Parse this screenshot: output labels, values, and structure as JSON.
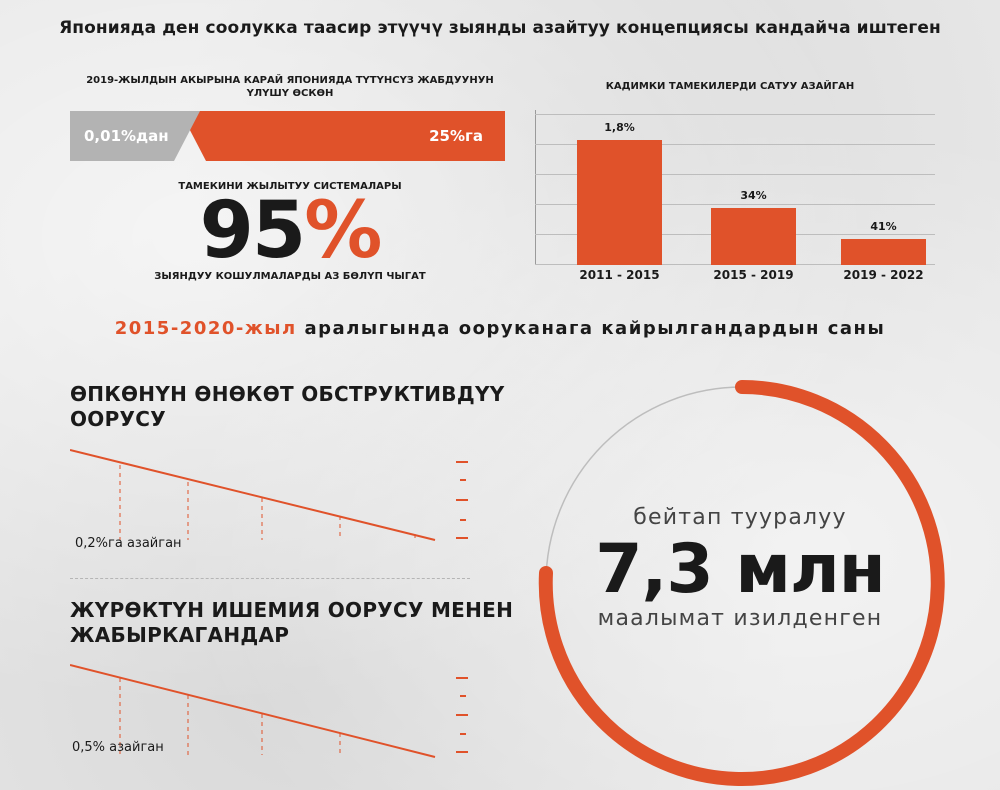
{
  "title": "Японияда ден соолукка таасир этүүчү зыянды азайтуу концепциясы кандайча иштеген",
  "share_block": {
    "caption": "2019-ЖЫЛДЫН АКЫРЫНА КАРАЙ ЯПОНИЯДА ТҮТҮНСҮЗ ЖАБДУУНУН ҮЛҮШҮ ӨСКӨН",
    "from_label": "0,01%дан",
    "to_label": "25%га"
  },
  "heating_block": {
    "caption_top": "ТАМЕКИНИ ЖЫЛЫТУУ СИСТЕМАЛАРЫ",
    "big_number": "95",
    "big_percent_sign": "%",
    "caption_bottom": "ЗЫЯНДУУ КОШУЛМАЛАРДЫ АЗ БӨЛҮП ЧЫГАТ"
  },
  "chart_data": {
    "type": "bar",
    "title": "КАДИМКИ ТАМЕКИЛЕРДИ САТУУ АЗАЙГАН",
    "categories": [
      "2011 - 2015",
      "2015 - 2019",
      "2019 - 2022"
    ],
    "values": [
      1.8,
      34,
      41
    ],
    "value_labels": [
      "1,8%",
      "34%",
      "41%"
    ],
    "bar_heights_relative": [
      1.0,
      0.46,
      0.21
    ],
    "color": "#e0522a",
    "grid": true
  },
  "sub_headline": {
    "accent": "2015-2020-жыл",
    "rest": " аралыгында ооруканага кайрылгандардын саны"
  },
  "sections": [
    {
      "title": "ӨПКӨНҮН ӨНӨКӨТ ОБСТРУКТИВДҮҮ ООРУСУ",
      "note": "0,2%га азайган"
    },
    {
      "title": "ЖҮРӨКТҮН ИШЕМИЯ ООРУСУ МЕНЕН ЖАБЫРКАГАНДАР",
      "note": "0,5% азайган"
    }
  ],
  "circle_stat": {
    "line1": "бейтап тууралуу",
    "big": "7,3 млн",
    "line2": "маалымат изилденген",
    "accent_color": "#e0522a"
  }
}
